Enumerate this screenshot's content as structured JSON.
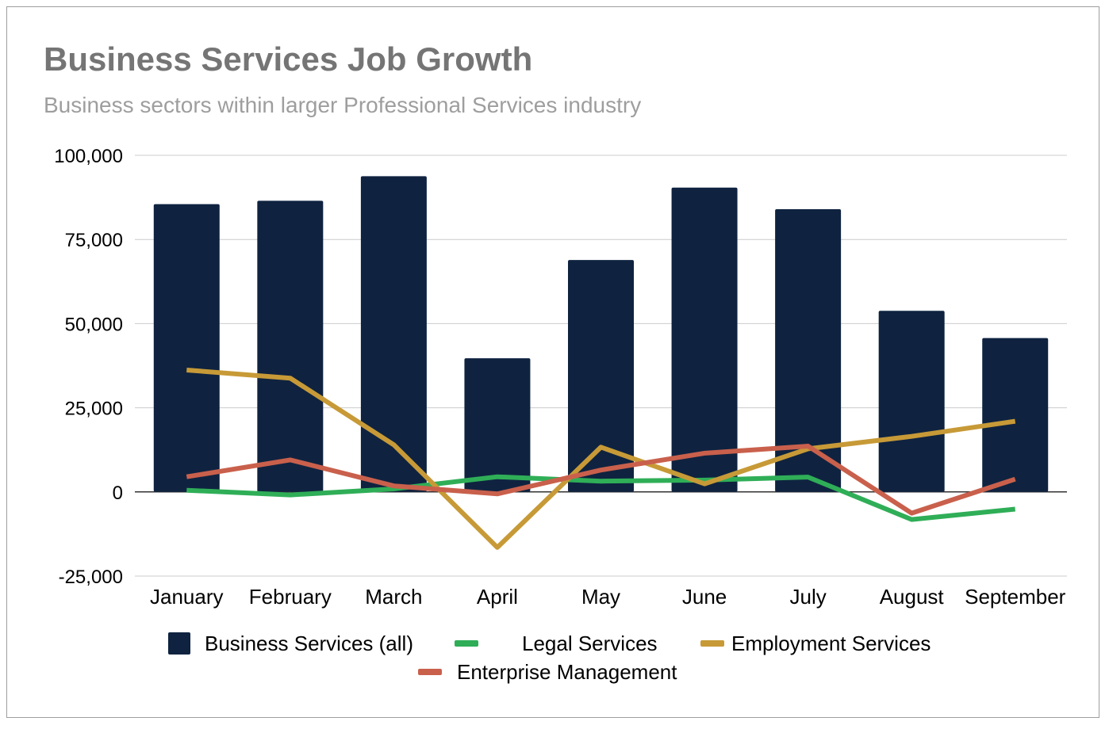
{
  "chart_data": {
    "type": "bar",
    "title": "Business Services Job Growth",
    "subtitle": "Business sectors within larger Professional Services industry",
    "categories": [
      "January",
      "February",
      "March",
      "April",
      "May",
      "June",
      "July",
      "August",
      "September"
    ],
    "ylim": [
      -25000,
      100000
    ],
    "yticks": [
      100000,
      75000,
      50000,
      25000,
      0,
      -25000
    ],
    "ytick_labels": [
      "100,000",
      "75,000",
      "50,000",
      "25,000",
      "0",
      "-25,000"
    ],
    "grid": true,
    "legend_position": "bottom",
    "series": [
      {
        "name": "Business Services (all)",
        "type": "bar",
        "color": "#0f2340",
        "values": [
          85500,
          86500,
          93800,
          39700,
          68900,
          90400,
          84000,
          53800,
          45700
        ]
      },
      {
        "name": "Legal Services",
        "type": "line",
        "color": "#2fae57",
        "values": [
          500,
          -900,
          900,
          4500,
          3200,
          3500,
          4400,
          -8200,
          -5100
        ]
      },
      {
        "name": "Employment Services",
        "type": "line",
        "color": "#c79a37",
        "values": [
          36200,
          33800,
          14000,
          -16500,
          13300,
          2400,
          12800,
          16500,
          21000
        ]
      },
      {
        "name": "Enterprise Management",
        "type": "line",
        "color": "#c9604c",
        "values": [
          4500,
          9500,
          1800,
          -600,
          6500,
          11500,
          13600,
          -6300,
          3800
        ]
      }
    ]
  }
}
